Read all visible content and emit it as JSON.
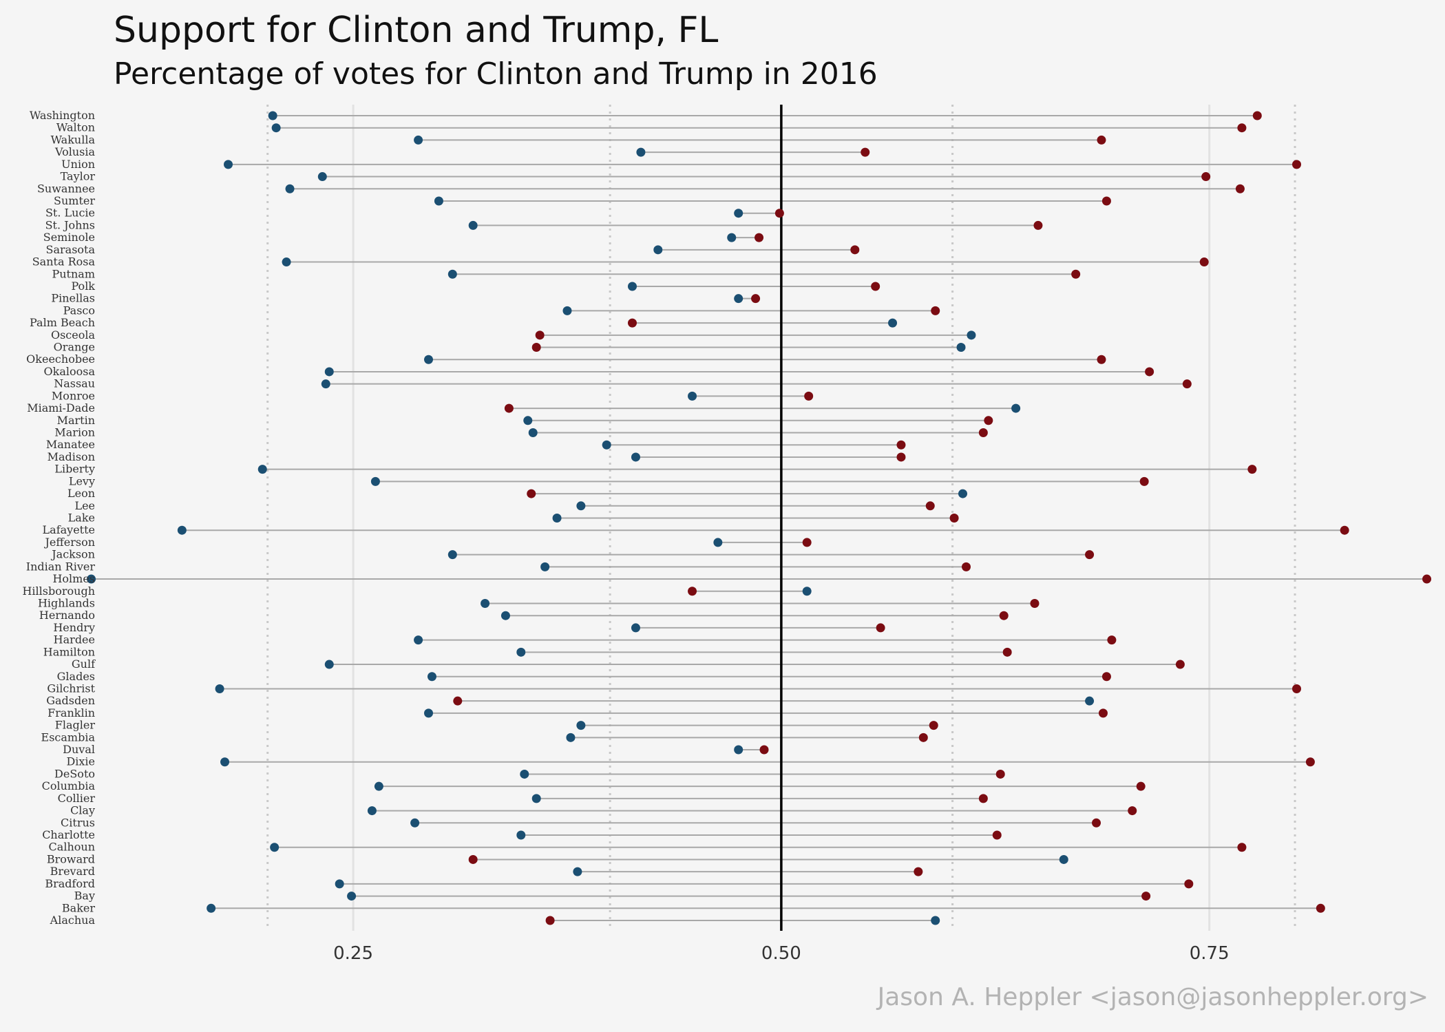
{
  "chart_data": {
    "type": "dumbbell",
    "title": "Support for Clinton and Trump,  FL",
    "subtitle": "Percentage of votes for Clinton and Trump in 2016",
    "caption": "Jason A. Heppler <jason@jasonheppler.org>",
    "xlim": [
      0.1,
      0.88
    ],
    "x_ticks": [
      0.25,
      0.5,
      0.75
    ],
    "x_tick_labels": [
      "0.25",
      "0.50",
      "0.75"
    ],
    "major_grid": [
      0.25,
      0.75
    ],
    "dotted_reference_lines": [
      0.2,
      0.4,
      0.6,
      0.8
    ],
    "midline": 0.5,
    "colors": {
      "clinton": "#1b4f72",
      "trump": "#7b0c12",
      "segment": "#a8a8a8",
      "midline": "#000000",
      "background": "#f5f5f5"
    },
    "counties": [
      {
        "name": "Washington",
        "clinton": 0.203,
        "trump": 0.778
      },
      {
        "name": "Walton",
        "clinton": 0.205,
        "trump": 0.769
      },
      {
        "name": "Wakulla",
        "clinton": 0.288,
        "trump": 0.687
      },
      {
        "name": "Volusia",
        "clinton": 0.418,
        "trump": 0.549
      },
      {
        "name": "Union",
        "clinton": 0.177,
        "trump": 0.801
      },
      {
        "name": "Taylor",
        "clinton": 0.232,
        "trump": 0.748
      },
      {
        "name": "Suwannee",
        "clinton": 0.213,
        "trump": 0.768
      },
      {
        "name": "Sumter",
        "clinton": 0.3,
        "trump": 0.69
      },
      {
        "name": "St. Lucie",
        "clinton": 0.475,
        "trump": 0.499
      },
      {
        "name": "St. Johns",
        "clinton": 0.32,
        "trump": 0.65
      },
      {
        "name": "Seminole",
        "clinton": 0.471,
        "trump": 0.487
      },
      {
        "name": "Sarasota",
        "clinton": 0.428,
        "trump": 0.543
      },
      {
        "name": "Santa Rosa",
        "clinton": 0.211,
        "trump": 0.747
      },
      {
        "name": "Putnam",
        "clinton": 0.308,
        "trump": 0.672
      },
      {
        "name": "Polk",
        "clinton": 0.413,
        "trump": 0.555
      },
      {
        "name": "Pinellas",
        "clinton": 0.475,
        "trump": 0.485
      },
      {
        "name": "Pasco",
        "clinton": 0.375,
        "trump": 0.59
      },
      {
        "name": "Palm Beach",
        "clinton": 0.565,
        "trump": 0.413
      },
      {
        "name": "Osceola",
        "clinton": 0.611,
        "trump": 0.359
      },
      {
        "name": "Orange",
        "clinton": 0.605,
        "trump": 0.357
      },
      {
        "name": "Okeechobee",
        "clinton": 0.294,
        "trump": 0.687
      },
      {
        "name": "Okaloosa",
        "clinton": 0.236,
        "trump": 0.715
      },
      {
        "name": "Nassau",
        "clinton": 0.234,
        "trump": 0.737
      },
      {
        "name": "Monroe",
        "clinton": 0.448,
        "trump": 0.516
      },
      {
        "name": "Miami-Dade",
        "clinton": 0.637,
        "trump": 0.341
      },
      {
        "name": "Martin",
        "clinton": 0.352,
        "trump": 0.621
      },
      {
        "name": "Marion",
        "clinton": 0.355,
        "trump": 0.618
      },
      {
        "name": "Manatee",
        "clinton": 0.398,
        "trump": 0.57
      },
      {
        "name": "Madison",
        "clinton": 0.415,
        "trump": 0.57
      },
      {
        "name": "Liberty",
        "clinton": 0.197,
        "trump": 0.775
      },
      {
        "name": "Levy",
        "clinton": 0.263,
        "trump": 0.712
      },
      {
        "name": "Leon",
        "clinton": 0.606,
        "trump": 0.354
      },
      {
        "name": "Lee",
        "clinton": 0.383,
        "trump": 0.587
      },
      {
        "name": "Lake",
        "clinton": 0.369,
        "trump": 0.601
      },
      {
        "name": "Lafayette",
        "clinton": 0.15,
        "trump": 0.829
      },
      {
        "name": "Jefferson",
        "clinton": 0.463,
        "trump": 0.515
      },
      {
        "name": "Jackson",
        "clinton": 0.308,
        "trump": 0.68
      },
      {
        "name": "Indian River",
        "clinton": 0.362,
        "trump": 0.608
      },
      {
        "name": "Holmes",
        "clinton": 0.097,
        "trump": 0.877
      },
      {
        "name": "Hillsborough",
        "clinton": 0.515,
        "trump": 0.448
      },
      {
        "name": "Highlands",
        "clinton": 0.327,
        "trump": 0.648
      },
      {
        "name": "Hernando",
        "clinton": 0.339,
        "trump": 0.63
      },
      {
        "name": "Hendry",
        "clinton": 0.415,
        "trump": 0.558
      },
      {
        "name": "Hardee",
        "clinton": 0.288,
        "trump": 0.693
      },
      {
        "name": "Hamilton",
        "clinton": 0.348,
        "trump": 0.632
      },
      {
        "name": "Gulf",
        "clinton": 0.236,
        "trump": 0.733
      },
      {
        "name": "Glades",
        "clinton": 0.296,
        "trump": 0.69
      },
      {
        "name": "Gilchrist",
        "clinton": 0.172,
        "trump": 0.801
      },
      {
        "name": "Gadsden",
        "clinton": 0.68,
        "trump": 0.311
      },
      {
        "name": "Franklin",
        "clinton": 0.294,
        "trump": 0.688
      },
      {
        "name": "Flagler",
        "clinton": 0.383,
        "trump": 0.589
      },
      {
        "name": "Escambia",
        "clinton": 0.377,
        "trump": 0.583
      },
      {
        "name": "Duval",
        "clinton": 0.475,
        "trump": 0.49
      },
      {
        "name": "Dixie",
        "clinton": 0.175,
        "trump": 0.809
      },
      {
        "name": "DeSoto",
        "clinton": 0.35,
        "trump": 0.628
      },
      {
        "name": "Columbia",
        "clinton": 0.265,
        "trump": 0.71
      },
      {
        "name": "Collier",
        "clinton": 0.357,
        "trump": 0.618
      },
      {
        "name": "Clay",
        "clinton": 0.261,
        "trump": 0.705
      },
      {
        "name": "Citrus",
        "clinton": 0.286,
        "trump": 0.684
      },
      {
        "name": "Charlotte",
        "clinton": 0.348,
        "trump": 0.626
      },
      {
        "name": "Calhoun",
        "clinton": 0.204,
        "trump": 0.769
      },
      {
        "name": "Broward",
        "clinton": 0.665,
        "trump": 0.32
      },
      {
        "name": "Brevard",
        "clinton": 0.381,
        "trump": 0.58
      },
      {
        "name": "Bradford",
        "clinton": 0.242,
        "trump": 0.738
      },
      {
        "name": "Bay",
        "clinton": 0.249,
        "trump": 0.713
      },
      {
        "name": "Baker",
        "clinton": 0.167,
        "trump": 0.815
      },
      {
        "name": "Alachua",
        "clinton": 0.59,
        "trump": 0.365
      }
    ]
  }
}
